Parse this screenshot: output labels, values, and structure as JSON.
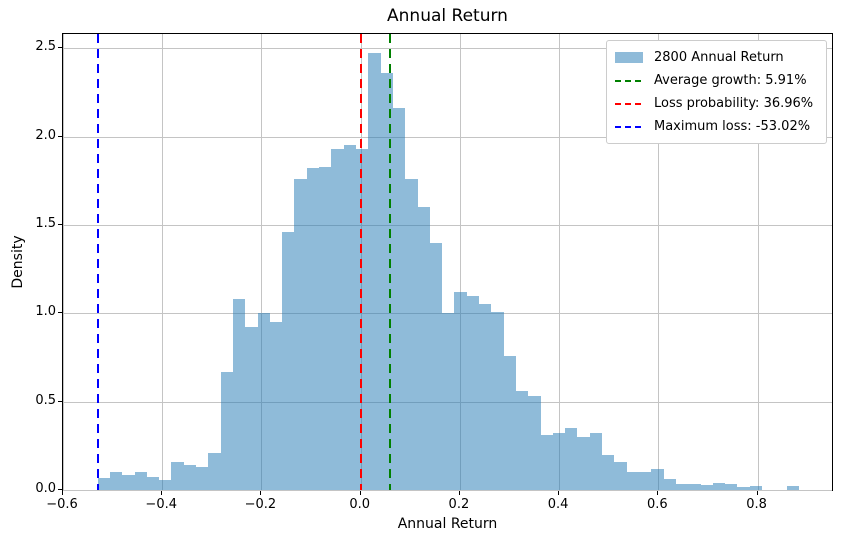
{
  "title": "Annual Return",
  "xlabel": "Annual Return",
  "ylabel": "Density",
  "legend": {
    "items": [
      {
        "label": "2800 Annual Return",
        "key": "patch",
        "color": "rgba(31,119,180,0.5)"
      },
      {
        "label": "Average growth: 5.91%",
        "key": "dash",
        "color": "#008000"
      },
      {
        "label": "Loss probability: 36.96%",
        "key": "dash",
        "color": "#ff0000"
      },
      {
        "label": "Maximum loss: -53.02%",
        "key": "dash",
        "color": "#0000ff"
      }
    ]
  },
  "chart_data": {
    "type": "bar",
    "subtype": "histogram-density",
    "title": "Annual Return",
    "xlabel": "Annual Return",
    "ylabel": "Density",
    "xlim": [
      -0.6,
      0.95
    ],
    "ylim": [
      0,
      2.58
    ],
    "grid": true,
    "grid_color": "#c4c4c4",
    "bar_color": "rgba(31,119,180,0.5)",
    "xticks": [
      -0.6,
      -0.4,
      -0.2,
      0.0,
      0.2,
      0.4,
      0.6,
      0.8
    ],
    "xtick_labels": [
      "−0.6",
      "−0.4",
      "−0.2",
      "0.0",
      "0.2",
      "0.4",
      "0.6",
      "0.8"
    ],
    "yticks": [
      0.0,
      0.5,
      1.0,
      1.5,
      2.0,
      2.5
    ],
    "ytick_labels": [
      "0.0",
      "0.5",
      "1.0",
      "1.5",
      "2.0",
      "2.5"
    ],
    "bin_start": -0.5302,
    "bin_width": 0.0248,
    "densities": [
      0.07,
      0.1,
      0.085,
      0.1,
      0.075,
      0.055,
      0.16,
      0.14,
      0.13,
      0.21,
      0.67,
      1.08,
      0.92,
      1.0,
      0.95,
      1.46,
      1.76,
      1.82,
      1.83,
      1.93,
      1.95,
      1.93,
      2.47,
      2.36,
      2.16,
      1.76,
      1.6,
      1.4,
      1.0,
      1.12,
      1.1,
      1.05,
      1.01,
      0.76,
      0.56,
      0.53,
      0.31,
      0.32,
      0.35,
      0.3,
      0.32,
      0.2,
      0.16,
      0.1,
      0.1,
      0.12,
      0.06,
      0.035,
      0.033,
      0.03,
      0.04,
      0.033,
      0.018,
      0.025,
      0.0,
      0.0,
      0.02
    ],
    "vlines": [
      {
        "name": "average-growth-line",
        "x": 0.0591,
        "color": "#008000",
        "style": "dashed",
        "label": "Average growth: 5.91%"
      },
      {
        "name": "loss-probability-line",
        "x": 0.0,
        "color": "#ff0000",
        "style": "dashed",
        "label": "Loss probability: 36.96%"
      },
      {
        "name": "maximum-loss-line",
        "x": -0.5302,
        "color": "#0000ff",
        "style": "dashed",
        "label": "Maximum loss: -53.02%"
      }
    ],
    "legend_entries": [
      "2800 Annual Return",
      "Average growth: 5.91%",
      "Loss probability: 36.96%",
      "Maximum loss: -53.02%"
    ]
  }
}
